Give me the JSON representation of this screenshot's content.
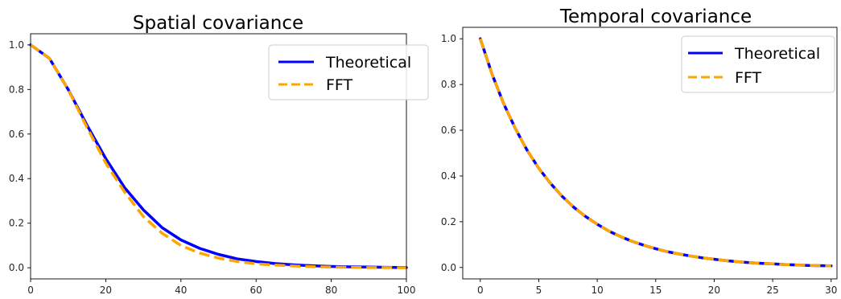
{
  "colors": {
    "theoretical": "#0000ff",
    "fft": "#ffa500",
    "axes": "#000000",
    "background": "#ffffff"
  },
  "chart_data": [
    {
      "type": "line",
      "title": "Spatial covariance",
      "xlabel": "",
      "ylabel": "",
      "xlim": [
        0,
        100
      ],
      "ylim": [
        -0.05,
        1.05
      ],
      "xticks": [
        "0",
        "20",
        "40",
        "60",
        "80",
        "100"
      ],
      "yticks": [
        "0.0",
        "0.2",
        "0.4",
        "0.6",
        "0.8",
        "1.0"
      ],
      "grid": false,
      "legend": "top-right",
      "x": [
        0,
        5,
        10,
        15,
        20,
        25,
        30,
        35,
        40,
        45,
        50,
        55,
        60,
        65,
        70,
        75,
        80,
        85,
        90,
        95,
        100
      ],
      "series": [
        {
          "name": "Theoretical",
          "style": "solid",
          "values": [
            1.0,
            0.94,
            0.8,
            0.64,
            0.49,
            0.36,
            0.26,
            0.18,
            0.125,
            0.087,
            0.06,
            0.04,
            0.028,
            0.019,
            0.013,
            0.009,
            0.006,
            0.004,
            0.003,
            0.002,
            0.001
          ]
        },
        {
          "name": "FFT",
          "style": "dashed",
          "values": [
            1.0,
            0.94,
            0.8,
            0.63,
            0.47,
            0.34,
            0.23,
            0.155,
            0.1,
            0.066,
            0.043,
            0.028,
            0.018,
            0.012,
            0.008,
            0.005,
            0.003,
            0.002,
            0.001,
            0.001,
            0.0
          ]
        }
      ]
    },
    {
      "type": "line",
      "title": "Temporal covariance",
      "xlabel": "",
      "ylabel": "",
      "xlim": [
        -1.5,
        30.5
      ],
      "ylim": [
        -0.05,
        1.05
      ],
      "xticks": [
        "0",
        "5",
        "10",
        "15",
        "20",
        "25",
        "30"
      ],
      "yticks": [
        "0.0",
        "0.2",
        "0.4",
        "0.6",
        "0.8",
        "1.0"
      ],
      "grid": false,
      "legend": "top-right",
      "x": [
        0,
        1,
        2,
        3,
        4,
        5,
        6,
        7,
        8,
        9,
        10,
        11,
        12,
        13,
        14,
        15,
        16,
        17,
        18,
        19,
        20,
        21,
        22,
        23,
        24,
        25,
        26,
        27,
        28,
        29,
        30
      ],
      "series": [
        {
          "name": "Theoretical",
          "style": "solid",
          "values": [
            1.0,
            0.846,
            0.716,
            0.607,
            0.513,
            0.434,
            0.368,
            0.311,
            0.263,
            0.223,
            0.189,
            0.159,
            0.135,
            0.114,
            0.097,
            0.082,
            0.069,
            0.059,
            0.05,
            0.042,
            0.036,
            0.03,
            0.025,
            0.021,
            0.018,
            0.016,
            0.013,
            0.011,
            0.009,
            0.008,
            0.007
          ]
        },
        {
          "name": "FFT",
          "style": "dashed",
          "values": [
            1.0,
            0.846,
            0.716,
            0.607,
            0.513,
            0.434,
            0.368,
            0.311,
            0.263,
            0.223,
            0.189,
            0.159,
            0.135,
            0.114,
            0.097,
            0.082,
            0.069,
            0.059,
            0.05,
            0.042,
            0.036,
            0.03,
            0.025,
            0.021,
            0.018,
            0.016,
            0.013,
            0.011,
            0.009,
            0.008,
            0.007
          ]
        }
      ]
    }
  ]
}
